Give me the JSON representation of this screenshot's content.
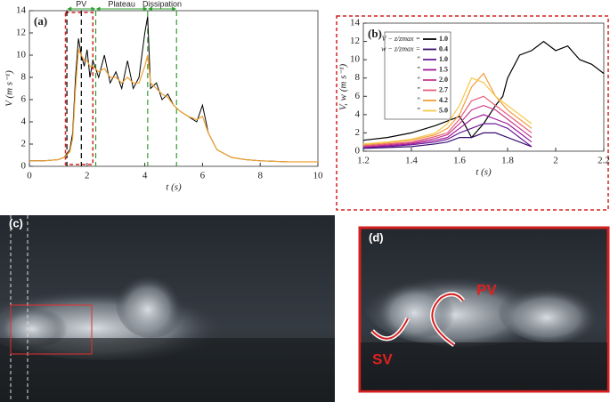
{
  "chart_data": [
    {
      "type": "line",
      "panel_label": "(a)",
      "xlabel": "t (s)",
      "ylabel": "V (m s⁻¹)",
      "xlim": [
        0,
        10
      ],
      "ylim": [
        0,
        14
      ],
      "xticks": [
        0,
        2,
        4,
        6,
        8,
        10
      ],
      "yticks": [
        0,
        2,
        4,
        6,
        8,
        10,
        12,
        14
      ],
      "x": [
        0,
        0.5,
        1,
        1.2,
        1.4,
        1.5,
        1.6,
        1.7,
        1.8,
        1.9,
        2.0,
        2.1,
        2.2,
        2.4,
        2.6,
        2.8,
        3.0,
        3.2,
        3.4,
        3.6,
        3.8,
        4.0,
        4.1,
        4.2,
        4.4,
        4.6,
        4.8,
        5.0,
        5.2,
        5.5,
        5.8,
        6.0,
        6.2,
        6.5,
        7,
        7.5,
        8,
        9,
        10
      ],
      "series": [
        {
          "color": "#000000",
          "values": [
            0.5,
            0.5,
            0.6,
            0.8,
            1.5,
            3,
            8,
            11.5,
            10,
            9,
            10.5,
            8,
            9.5,
            8,
            10,
            7.5,
            8.5,
            7,
            9.5,
            7,
            8,
            12,
            13.5,
            7,
            7.5,
            6,
            6.5,
            5.5,
            5,
            4.5,
            4,
            5.5,
            3,
            1.5,
            0.8,
            0.6,
            0.5,
            0.4,
            0.4
          ]
        },
        {
          "color": "#f0a030",
          "values": [
            0.5,
            0.5,
            0.6,
            0.8,
            1.3,
            2.5,
            7,
            10.5,
            10,
            9.5,
            9.5,
            9,
            9,
            8.5,
            8.8,
            8,
            8,
            7.5,
            8,
            7.5,
            7.5,
            9,
            10,
            7.5,
            7,
            6.5,
            6.2,
            5.5,
            5,
            4.5,
            4.2,
            4.5,
            3,
            1.5,
            0.8,
            0.6,
            0.5,
            0.4,
            0.4
          ]
        }
      ],
      "highlight": [
        1.25,
        2.2
      ],
      "vlines": [
        {
          "x": 1.3,
          "color": "#000000"
        },
        {
          "x": 1.8,
          "color": "#000000"
        },
        {
          "x": 2.3,
          "color": "#2ca02c"
        },
        {
          "x": 4.1,
          "color": "#2ca02c"
        },
        {
          "x": 5.1,
          "color": "#2ca02c"
        }
      ],
      "phases": [
        {
          "label": "PV",
          "start": 1.3,
          "end": 2.3
        },
        {
          "label": "Plateau",
          "start": 2.3,
          "end": 4.1
        },
        {
          "label": "Dissipation",
          "start": 4.1,
          "end": 5.1
        }
      ]
    },
    {
      "type": "line",
      "panel_label": "(b)",
      "xlabel": "t (s)",
      "ylabel": "V, w (m s⁻¹)",
      "xlim": [
        1.2,
        2.2
      ],
      "ylim": [
        0,
        14
      ],
      "xticks": [
        1.2,
        1.4,
        1.6,
        1.8,
        2,
        2.2
      ],
      "yticks": [
        0,
        2,
        4,
        6,
        8,
        10,
        12,
        14
      ],
      "x": [
        1.2,
        1.3,
        1.4,
        1.5,
        1.55,
        1.6,
        1.65,
        1.7,
        1.75,
        1.8,
        1.85,
        1.9
      ],
      "legend_prefixes": [
        "V − z/zmax =",
        "w − z/zmax =",
        "”",
        "”",
        "”",
        "”",
        "”",
        "”"
      ],
      "series": [
        {
          "name": "1.0",
          "color": "#000000",
          "x": [
            1.2,
            1.3,
            1.4,
            1.5,
            1.55,
            1.6,
            1.62,
            1.65,
            1.7,
            1.75,
            1.78,
            1.8,
            1.85,
            1.9,
            1.95,
            2.0,
            2.05,
            2.1,
            2.15,
            2.2
          ],
          "values": [
            1.2,
            1.5,
            2,
            2.8,
            3.3,
            3.8,
            3,
            1.5,
            3,
            5,
            6,
            8,
            10.5,
            11,
            12,
            11,
            11.5,
            10,
            9.5,
            8.5
          ]
        },
        {
          "name": "0.4",
          "color": "#3b0f70",
          "values": [
            0.3,
            0.4,
            0.5,
            0.8,
            1,
            1.5,
            1.5,
            2,
            2,
            1.5,
            1,
            0.5
          ]
        },
        {
          "name": "1.0",
          "color": "#6a1b9a",
          "values": [
            0.4,
            0.5,
            0.7,
            1,
            1.3,
            2,
            2.5,
            3,
            3,
            2.5,
            1.5,
            0.5
          ]
        },
        {
          "name": "1.5",
          "color": "#a0179a",
          "values": [
            0.5,
            0.6,
            0.8,
            1.2,
            1.5,
            2.5,
            3.5,
            4,
            3.5,
            3,
            2,
            1
          ]
        },
        {
          "name": "2.0",
          "color": "#c93a8c",
          "values": [
            0.5,
            0.7,
            0.9,
            1.4,
            1.8,
            3,
            4.5,
            5,
            4.5,
            3.5,
            2.5,
            1.5
          ]
        },
        {
          "name": "2.7",
          "color": "#e6607a",
          "values": [
            0.6,
            0.8,
            1,
            1.6,
            2,
            3.5,
            5.5,
            6,
            5,
            4,
            3,
            2
          ]
        },
        {
          "name": "4.2",
          "color": "#f49c3c",
          "values": [
            0.7,
            0.9,
            1.2,
            1.8,
            2.5,
            4,
            7,
            8.5,
            6,
            4.5,
            3.5,
            2.5
          ]
        },
        {
          "name": "5.0",
          "color": "#f7c84a",
          "values": [
            0.8,
            1,
            1.3,
            2,
            3,
            5,
            8,
            7.5,
            6,
            5,
            4,
            3
          ]
        }
      ]
    }
  ],
  "photos": {
    "c_label": "(c)",
    "d_label": "(d)",
    "pv": "PV",
    "sv": "SV"
  }
}
